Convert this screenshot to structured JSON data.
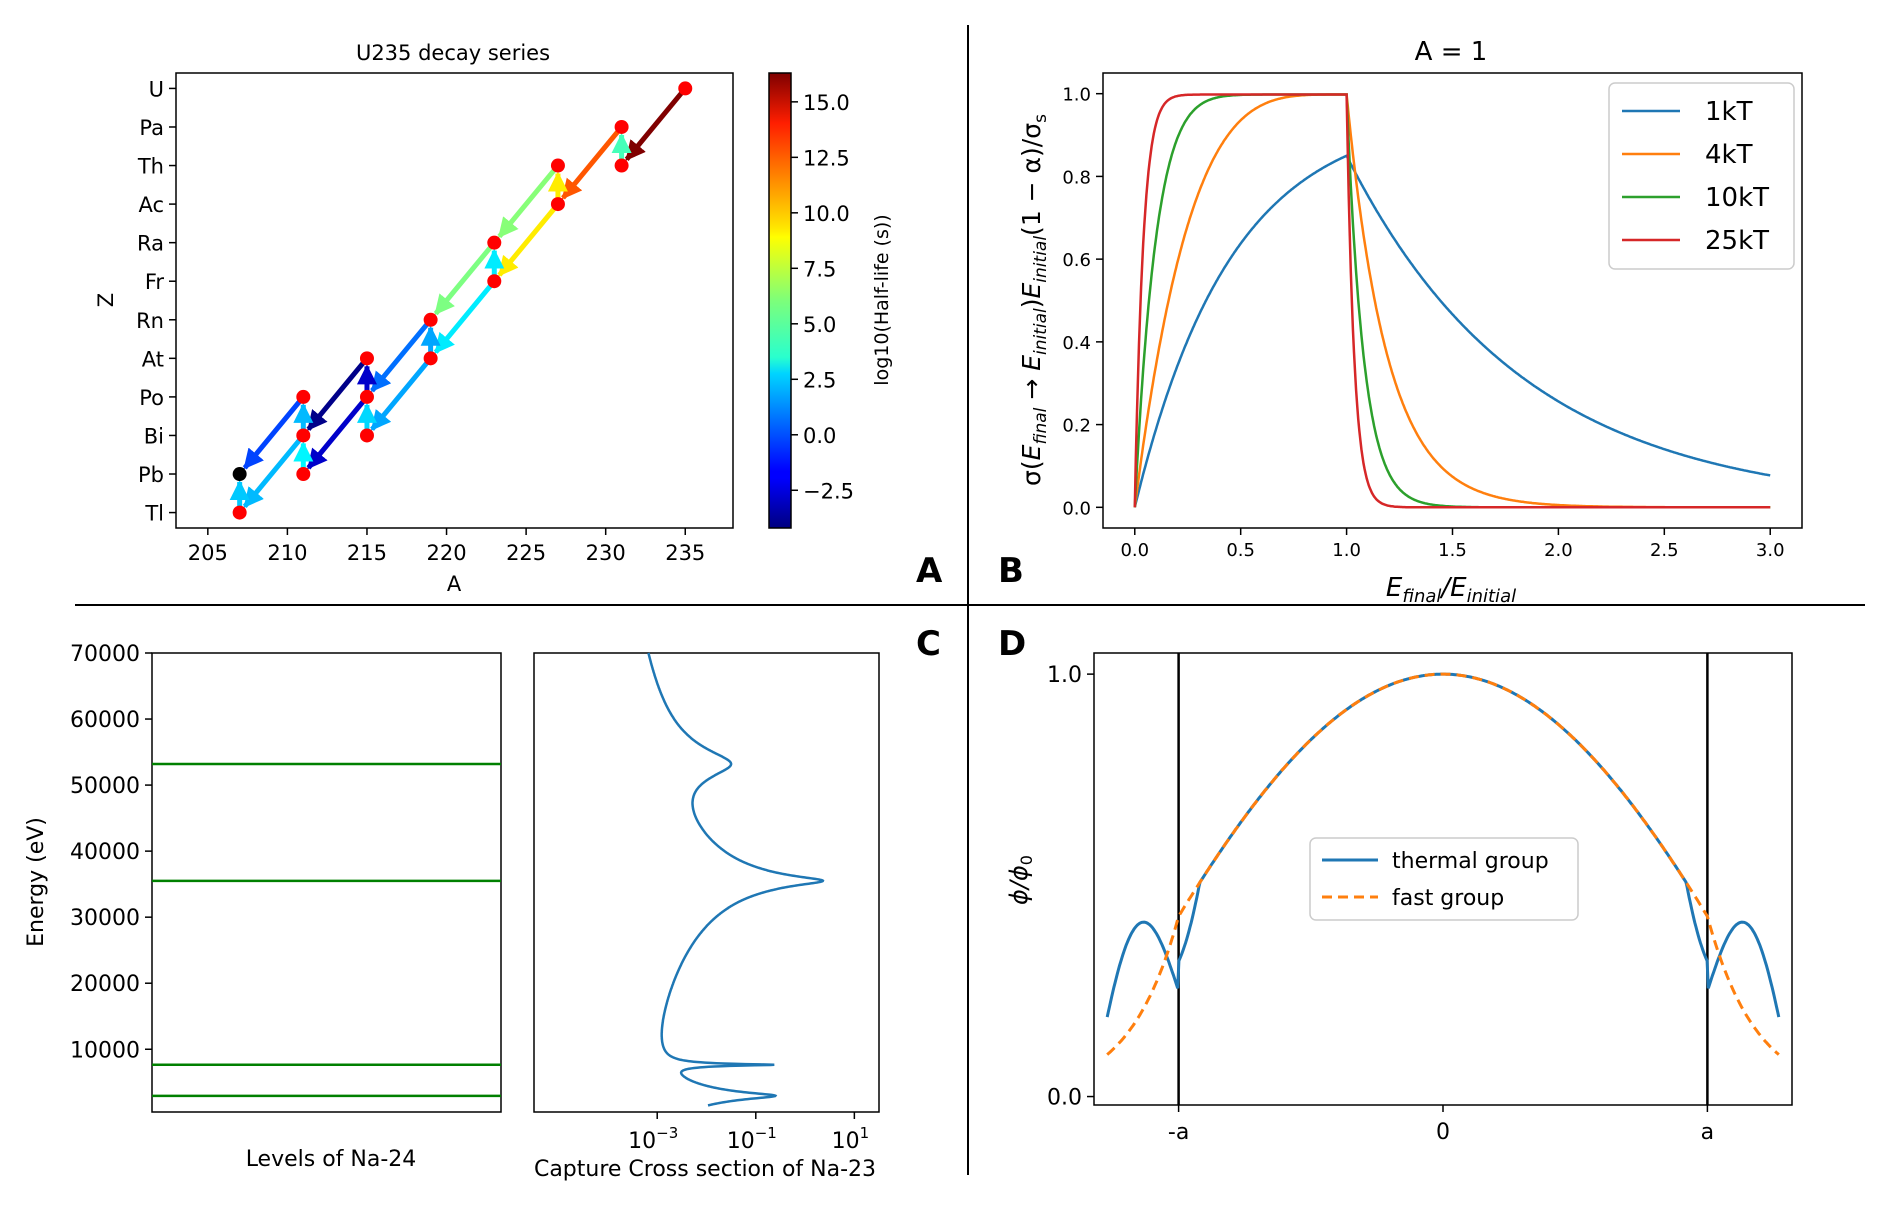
{
  "panel_labels": {
    "a": "A",
    "b": "B",
    "c": "C",
    "d": "D"
  },
  "chart_data": [
    {
      "panel": "A",
      "type": "scatter",
      "title": "U235 decay series",
      "xlabel": "A",
      "ylabel": "Z",
      "xlim": [
        203,
        238
      ],
      "xticks": [
        "205",
        "210",
        "215",
        "220",
        "225",
        "230",
        "235"
      ],
      "ylim": [
        80.6,
        92.4
      ],
      "yticks": [
        "Tl",
        "Pb",
        "Bi",
        "Po",
        "At",
        "Rn",
        "Fr",
        "Ra",
        "Ac",
        "Th",
        "Pa",
        "U"
      ],
      "ytick_z": [
        81,
        82,
        83,
        84,
        85,
        86,
        87,
        88,
        89,
        90,
        91,
        92
      ],
      "colorbar": {
        "label": "log10(Half-life (s))",
        "min": -4.2,
        "max": 16.3,
        "ticks": [
          "−2.5",
          "0.0",
          "2.5",
          "5.0",
          "7.5",
          "10.0",
          "12.5",
          "15.0"
        ],
        "tick_values": [
          -2.5,
          0,
          2.5,
          5,
          7.5,
          10,
          12.5,
          15
        ]
      },
      "nuclides": [
        {
          "a": 235,
          "z": 92,
          "color": "red"
        },
        {
          "a": 231,
          "z": 90,
          "color": "red"
        },
        {
          "a": 231,
          "z": 91,
          "color": "red"
        },
        {
          "a": 227,
          "z": 89,
          "color": "red"
        },
        {
          "a": 227,
          "z": 90,
          "color": "red"
        },
        {
          "a": 223,
          "z": 88,
          "color": "red"
        },
        {
          "a": 223,
          "z": 87,
          "color": "red"
        },
        {
          "a": 219,
          "z": 86,
          "color": "red"
        },
        {
          "a": 219,
          "z": 85,
          "color": "red"
        },
        {
          "a": 215,
          "z": 84,
          "color": "red"
        },
        {
          "a": 215,
          "z": 85,
          "color": "red"
        },
        {
          "a": 215,
          "z": 83,
          "color": "red"
        },
        {
          "a": 211,
          "z": 82,
          "color": "red"
        },
        {
          "a": 211,
          "z": 83,
          "color": "red"
        },
        {
          "a": 211,
          "z": 84,
          "color": "red"
        },
        {
          "a": 207,
          "z": 81,
          "color": "red"
        },
        {
          "a": 207,
          "z": 82,
          "color": "black"
        }
      ],
      "decays": [
        {
          "from": [
            235,
            92
          ],
          "to": [
            231,
            90
          ],
          "log_half_life": 16.3
        },
        {
          "from": [
            231,
            90
          ],
          "to": [
            231,
            91
          ],
          "log_half_life": 4.9
        },
        {
          "from": [
            231,
            91
          ],
          "to": [
            227,
            89
          ],
          "log_half_life": 12.0
        },
        {
          "from": [
            227,
            89
          ],
          "to": [
            227,
            90
          ],
          "log_half_life": 9.0
        },
        {
          "from": [
            227,
            89
          ],
          "to": [
            223,
            87
          ],
          "log_half_life": 9.0
        },
        {
          "from": [
            227,
            90
          ],
          "to": [
            223,
            88
          ],
          "log_half_life": 6.2
        },
        {
          "from": [
            223,
            87
          ],
          "to": [
            223,
            88
          ],
          "log_half_life": 3.1
        },
        {
          "from": [
            223,
            88
          ],
          "to": [
            219,
            86
          ],
          "log_half_life": 6.0
        },
        {
          "from": [
            219,
            86
          ],
          "to": [
            215,
            84
          ],
          "log_half_life": 0.6
        },
        {
          "from": [
            223,
            87
          ],
          "to": [
            219,
            85
          ],
          "log_half_life": 3.1
        },
        {
          "from": [
            219,
            85
          ],
          "to": [
            219,
            86
          ],
          "log_half_life": 1.7
        },
        {
          "from": [
            219,
            85
          ],
          "to": [
            215,
            83
          ],
          "log_half_life": 1.7
        },
        {
          "from": [
            215,
            84
          ],
          "to": [
            215,
            85
          ],
          "log_half_life": -2.7
        },
        {
          "from": [
            215,
            84
          ],
          "to": [
            211,
            82
          ],
          "log_half_life": -2.7
        },
        {
          "from": [
            215,
            83
          ],
          "to": [
            215,
            84
          ],
          "log_half_life": 2.7
        },
        {
          "from": [
            215,
            85
          ],
          "to": [
            211,
            83
          ],
          "log_half_life": -4.0
        },
        {
          "from": [
            211,
            82
          ],
          "to": [
            211,
            83
          ],
          "log_half_life": 3.3
        },
        {
          "from": [
            211,
            83
          ],
          "to": [
            211,
            84
          ],
          "log_half_life": 2.1
        },
        {
          "from": [
            211,
            83
          ],
          "to": [
            207,
            81
          ],
          "log_half_life": 2.1
        },
        {
          "from": [
            211,
            84
          ],
          "to": [
            207,
            82
          ],
          "log_half_life": -0.3
        },
        {
          "from": [
            207,
            81
          ],
          "to": [
            207,
            82
          ],
          "log_half_life": 2.4
        }
      ]
    },
    {
      "panel": "B",
      "type": "line",
      "title": "A = 1",
      "xlabel": "E_final/E_initial",
      "ylabel": "σ(E_final → E_initial)E_initial(1 − α)/σ_s",
      "xlim": [
        -0.15,
        3.15
      ],
      "ylim": [
        -0.05,
        1.05
      ],
      "xticks": [
        "0.0",
        "0.5",
        "1.0",
        "1.5",
        "2.0",
        "2.5",
        "3.0"
      ],
      "yticks": [
        "0.0",
        "0.2",
        "0.4",
        "0.6",
        "0.8",
        "1.0"
      ],
      "legend_position": "top-right",
      "series": [
        {
          "name": "1kT",
          "kt": 1,
          "color": "#1f77b4"
        },
        {
          "name": "4kT",
          "kt": 4,
          "color": "#ff7f0e"
        },
        {
          "name": "10kT",
          "kt": 10,
          "color": "#2ca02c"
        },
        {
          "name": "25kT",
          "kt": 25,
          "color": "#d62728"
        }
      ]
    },
    {
      "panel": "C",
      "type": "line",
      "left_xlabel": "Levels of Na-24",
      "ylabel": "Energy (eV)",
      "ylim": [
        500,
        70000
      ],
      "yticks": [
        "10000",
        "20000",
        "30000",
        "40000",
        "50000",
        "60000",
        "70000"
      ],
      "ytick_values": [
        10000,
        20000,
        30000,
        40000,
        50000,
        60000,
        70000
      ],
      "level_color": "green",
      "levels_ev": [
        2950,
        7650,
        35500,
        53200
      ],
      "right_xlabel": "Capture Cross section of Na-23",
      "x_scale": "log",
      "xlim_exp": [
        -5.5,
        1.5
      ],
      "xtick_base": "10",
      "xticks": [
        {
          "exp": "−3",
          "value": -3
        },
        {
          "exp": "−1",
          "value": -1
        },
        {
          "exp": "1",
          "value": 1
        }
      ],
      "resonances": [
        {
          "energy_ev": 2950,
          "peak": 0.25,
          "width": 300
        },
        {
          "energy_ev": 7650,
          "peak": 0.25,
          "width": 60
        },
        {
          "energy_ev": 35500,
          "peak": 2.3,
          "width": 450
        },
        {
          "energy_ev": 53200,
          "peak": 0.03,
          "width": 1500
        }
      ],
      "curve_color": "#1f77b4"
    },
    {
      "panel": "D",
      "type": "line",
      "ylabel": "φ/φ0",
      "xticks": [
        "-a",
        "0",
        "a"
      ],
      "tick_positions": [
        -1,
        0,
        1
      ],
      "xlim": [
        -1.32,
        1.32
      ],
      "ylim": [
        -0.02,
        1.05
      ],
      "yticks": [
        "0.0",
        "1.0"
      ],
      "boundaries": [
        -1,
        1
      ],
      "legend_position": "center",
      "series": [
        {
          "name": "thermal group",
          "color": "#1f77b4",
          "style": "solid"
        },
        {
          "name": "fast group",
          "color": "#ff7f0e",
          "style": "dashed"
        }
      ]
    }
  ]
}
